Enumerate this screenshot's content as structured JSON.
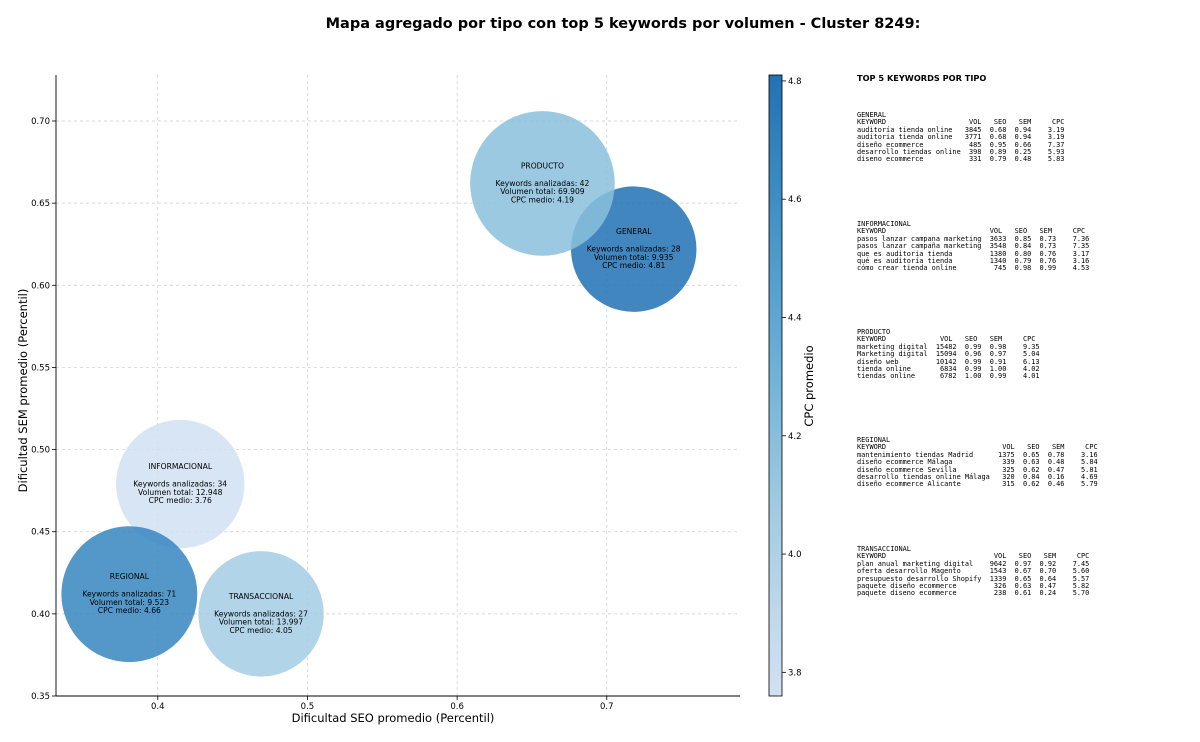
{
  "title": "Mapa agregado por tipo con top 5 keywords por volumen - Cluster 8249:",
  "chart_data": {
    "type": "scatter",
    "xlabel": "Dificultad SEO promedio (Percentil)",
    "ylabel": "Dificultad SEM promedio (Percentil)",
    "xlim": [
      0.332,
      0.789
    ],
    "ylim": [
      0.35,
      0.728
    ],
    "xticks": [
      "0.4",
      "0.5",
      "0.6",
      "0.7"
    ],
    "yticks": [
      "0.35",
      "0.40",
      "0.45",
      "0.50",
      "0.55",
      "0.60",
      "0.65",
      "0.70"
    ],
    "grid": true,
    "colorbar": {
      "label": "CPC promedio",
      "min": 3.76,
      "max": 4.81,
      "ticks": [
        "3.8",
        "4.0",
        "4.2",
        "4.4",
        "4.6",
        "4.8"
      ],
      "colormap": "Blues"
    },
    "points": [
      {
        "name": "GENERAL",
        "x": 0.718,
        "y": 0.622,
        "cpc": 4.81,
        "keywords": 28,
        "text_kw": "Keywords analizadas: 28",
        "text_vol": "Volumen total: 9.935",
        "text_cpc": "CPC medio: 4.81"
      },
      {
        "name": "PRODUCTO",
        "x": 0.657,
        "y": 0.662,
        "cpc": 4.19,
        "keywords": 42,
        "text_kw": "Keywords analizadas: 42",
        "text_vol": "Volumen total: 69.909",
        "text_cpc": "CPC medio: 4.19"
      },
      {
        "name": "INFORMACIONAL",
        "x": 0.415,
        "y": 0.479,
        "cpc": 3.76,
        "keywords": 34,
        "text_kw": "Keywords analizadas: 34",
        "text_vol": "Volumen total: 12.948",
        "text_cpc": "CPC medio: 3.76"
      },
      {
        "name": "REGIONAL",
        "x": 0.381,
        "y": 0.412,
        "cpc": 4.66,
        "keywords": 71,
        "text_kw": "Keywords analizadas: 71",
        "text_vol": "Volumen total: 9.523",
        "text_cpc": "CPC medio: 4.66"
      },
      {
        "name": "TRANSACCIONAL",
        "x": 0.469,
        "y": 0.4,
        "cpc": 4.05,
        "keywords": 27,
        "text_kw": "Keywords analizadas: 27",
        "text_vol": "Volumen total: 13.997",
        "text_cpc": "CPC medio: 4.05"
      }
    ]
  },
  "side_panel": {
    "title": "TOP 5 KEYWORDS POR TIPO",
    "groups": [
      {
        "name": "GENERAL",
        "lines": [
          "KEYWORD                    VOL   SEO   SEM     CPC",
          "auditoría tienda online   3845  0.68  0.94    3.19",
          "auditoria tienda online   3771  0.68  0.94    3.19",
          "diseño ecommerce           485  0.95  0.66    7.37",
          "desarrollo tiendas online  398  0.89  0.25    5.93",
          "diseno ecommerce           331  0.79  0.48    5.83"
        ]
      },
      {
        "name": "INFORMACIONAL",
        "lines": [
          "KEYWORD                         VOL   SEO   SEM     CPC",
          "pasos lanzar campana marketing  3633  0.85  0.73    7.36",
          "pasos lanzar campaña marketing  3548  0.84  0.73    7.35",
          "que es auditoria tienda         1380  0.80  0.76    3.17",
          "qué es auditoría tienda         1340  0.79  0.76    3.16",
          "cómo crear tienda online         745  0.98  0.99    4.53"
        ]
      },
      {
        "name": "PRODUCTO",
        "lines": [
          "KEYWORD             VOL   SEO   SEM     CPC",
          "marketing digital  15482  0.99  0.98    9.35",
          "Marketing digital  15094  0.96  0.97    5.04",
          "diseño web         10142  0.99  0.91    6.13",
          "tienda online       6834  0.99  1.00    4.02",
          "tiendas online      6782  1.00  0.99    4.01"
        ]
      },
      {
        "name": "REGIONAL",
        "lines": [
          "KEYWORD                            VOL   SEO   SEM     CPC",
          "mantenimiento tiendas Madrid      1375  0.65  0.78    3.16",
          "diseño ecommerce Málaga            339  0.63  0.48    5.84",
          "diseño ecommerce Sevilla           325  0.62  0.47    5.81",
          "desarrollo tiendas online Málaga   320  0.84  0.16    4.69",
          "diseño ecommerce Alicante          315  0.62  0.46    5.79"
        ]
      },
      {
        "name": "TRANSACCIONAL",
        "lines": [
          "KEYWORD                          VOL   SEO   SEM     CPC",
          "plan anual marketing digital    9642  0.97  0.92    7.45",
          "oferta desarrollo Magento       1543  0.67  0.70    5.60",
          "presupuesto desarrollo Shopify  1339  0.65  0.64    5.57",
          "paquete diseño ecommerce         326  0.63  0.47    5.82",
          "paquete diseno ecommerce         238  0.61  0.24    5.70"
        ]
      }
    ]
  }
}
